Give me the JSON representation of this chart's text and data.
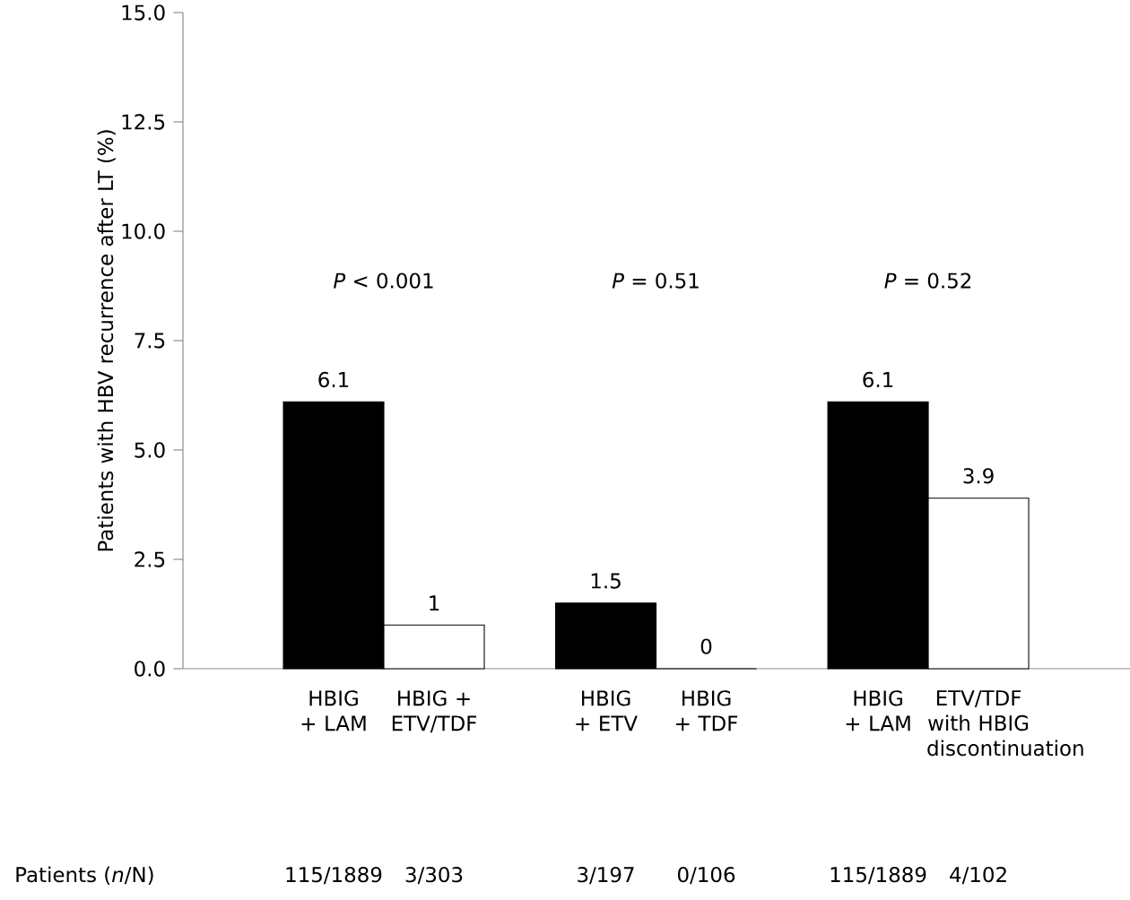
{
  "chart_data": {
    "type": "bar",
    "ylabel": "Patients with HBV recurrence after LT (%)",
    "categories": [
      "HBIG + LAM",
      "HBIG + ETV/TDF",
      "HBIG + ETV",
      "HBIG + TDF",
      "HBIG + LAM",
      "ETV/TDF with HBIG discontinuation"
    ],
    "values": [
      6.1,
      1,
      1.5,
      0,
      6.1,
      3.9
    ],
    "value_labels": [
      "6.1",
      "1",
      "1.5",
      "0",
      "6.1",
      "3.9"
    ],
    "colors": [
      "#000000",
      "#ffffff",
      "#000000",
      "#ffffff",
      "#000000",
      "#ffffff"
    ],
    "ylim": [
      0,
      15
    ],
    "yticks": [
      {
        "value": 0,
        "label": "0.0"
      },
      {
        "value": 2.5,
        "label": "2.5"
      },
      {
        "value": 5,
        "label": "5.0"
      },
      {
        "value": 7.5,
        "label": "7.5"
      },
      {
        "value": 10,
        "label": "10.0"
      },
      {
        "value": 12.5,
        "label": "12.5"
      },
      {
        "value": 15,
        "label": "15.0"
      }
    ],
    "grid": false,
    "annotations": [
      "*P* < 0.001",
      "*P* = 0.51",
      "*P* = 0.52",
      "Patients (*n*/N)",
      "115/1889",
      "3/303",
      "3/197",
      "0/106",
      "115/1889",
      "4/102"
    ]
  }
}
